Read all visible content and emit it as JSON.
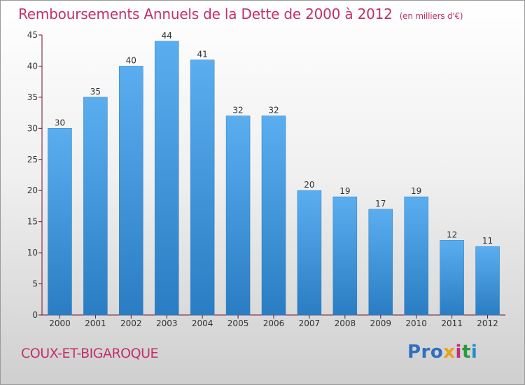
{
  "title": "Remboursements Annuels de la Dette de 2000 à 2012",
  "unit_note": "(en milliers d'€)",
  "commune": "COUX-ET-BIGAROQUE",
  "logo": {
    "letters": [
      "Pro",
      "x",
      "i",
      "t",
      "i"
    ],
    "colors": [
      "#2f6fc0",
      "#e8a21b",
      "#c82a7a",
      "#2c9a3c",
      "#1f8fd0"
    ]
  },
  "colors": {
    "bar_top": "#5aaef0",
    "bar_bottom": "#2a7dc2",
    "title": "#c0306a",
    "axis": "#6b0f2e"
  },
  "chart_data": {
    "type": "bar",
    "categories": [
      "2000",
      "2001",
      "2002",
      "2003",
      "2004",
      "2005",
      "2006",
      "2007",
      "2008",
      "2009",
      "2010",
      "2011",
      "2012"
    ],
    "values": [
      30,
      35,
      40,
      44,
      41,
      32,
      32,
      20,
      19,
      17,
      19,
      12,
      11
    ],
    "data_labels": [
      "30",
      "35",
      "40",
      "44",
      "41",
      "32",
      "32",
      "20",
      "19",
      "17",
      "19",
      "12",
      "11"
    ],
    "y_ticks": [
      "0",
      "5",
      "10",
      "15",
      "20",
      "25",
      "30",
      "35",
      "40",
      "45"
    ],
    "ylim": [
      0,
      45
    ],
    "grid": false,
    "legend": "none"
  }
}
